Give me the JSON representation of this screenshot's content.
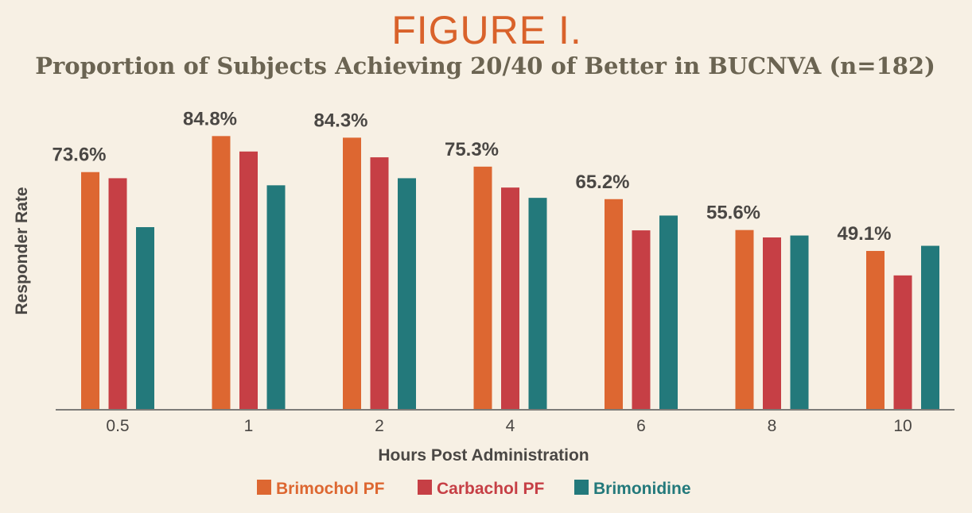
{
  "colors": {
    "background": "#f7f0e4",
    "accent": "#d9622b",
    "title_text": "#6b6452",
    "axis_text": "#4a4744"
  },
  "chart_data": {
    "type": "bar",
    "figure_label": "FIGURE I.",
    "title": "Proportion of Subjects Achieving 20/40 of Better in BUCNVA (n=182)",
    "xlabel": "Hours Post Administration",
    "ylabel": "Responder Rate",
    "categories": [
      "0.5",
      "1",
      "2",
      "4",
      "6",
      "8",
      "10"
    ],
    "ylim": [
      0,
      95
    ],
    "grid": false,
    "legend_position": "bottom-center",
    "series": [
      {
        "name": "Brimochol PF",
        "color": "#dd6731",
        "values": [
          73.6,
          84.8,
          84.3,
          75.3,
          65.2,
          55.6,
          49.1
        ],
        "labels": [
          "73.6%",
          "84.8%",
          "84.3%",
          "75.3%",
          "65.2%",
          "55.6%",
          "49.1%"
        ]
      },
      {
        "name": "Carbachol PF",
        "color": "#c63f45",
        "values": [
          71.7,
          80.0,
          78.2,
          68.8,
          55.5,
          53.3,
          41.5
        ]
      },
      {
        "name": "Brimonidine",
        "color": "#23797b",
        "values": [
          56.5,
          69.5,
          71.7,
          65.6,
          60.1,
          53.9,
          50.7
        ]
      }
    ]
  }
}
